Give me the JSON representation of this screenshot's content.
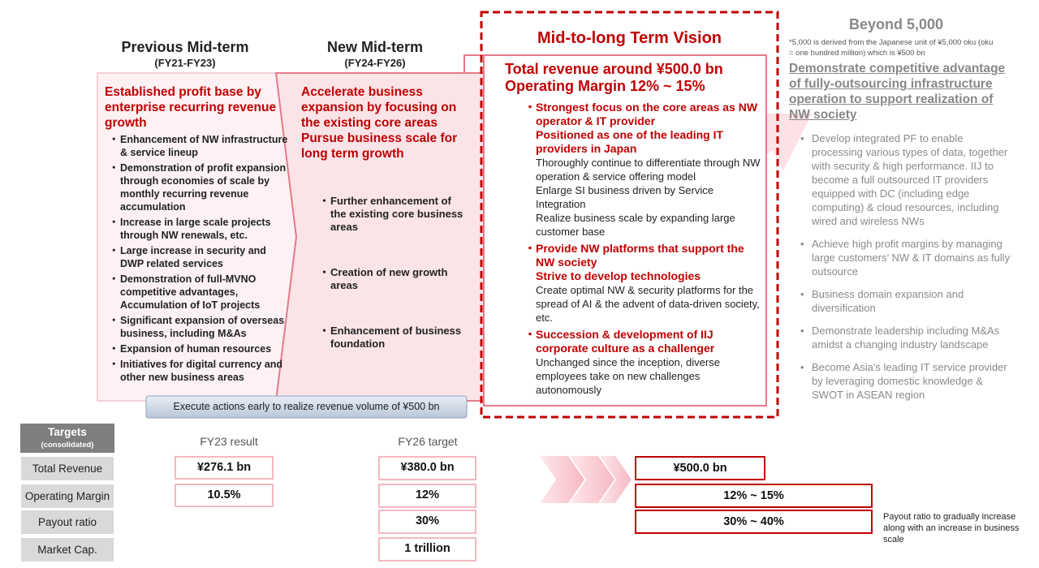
{
  "previous": {
    "title": "Previous Mid-term",
    "period": "(FY21-FY23)",
    "heading": "Established profit base by enterprise recurring revenue growth",
    "items": [
      "Enhancement of NW infrastructure & service lineup",
      "Demonstration of profit expansion through economies of scale by monthly recurring revenue accumulation",
      "Increase in large scale projects through NW renewals, etc.",
      "Large increase in security and DWP related services",
      "Demonstration of full-MVNO competitive advantages, Accumulation of IoT projects",
      "Significant expansion of overseas business, including M&As",
      "Expansion of human resources",
      "Initiatives for digital currency and other new business areas"
    ]
  },
  "new": {
    "title": "New Mid-term",
    "period": "(FY24-FY26)",
    "heading": [
      "Accelerate business expansion by focusing on the existing core areas",
      "Pursue business scale for long term growth"
    ],
    "items": [
      "Further enhancement of the existing core business areas",
      "Creation of new growth areas",
      "Enhancement of business foundation"
    ]
  },
  "vision": {
    "title": "Mid-to-long Term Vision",
    "headline": [
      "Total revenue around ¥500.0 bn",
      "Operating Margin 12% ~ 15%"
    ],
    "sections": [
      {
        "heading": [
          "Strongest focus on the core areas as NW operator & IT provider",
          "Positioned as one of the leading IT providers in Japan"
        ],
        "body": [
          "Thoroughly continue to differentiate through NW operation & service offering model",
          "Enlarge SI business driven by Service Integration",
          "Realize business scale by expanding large customer base"
        ]
      },
      {
        "heading": [
          "Provide NW platforms that support the NW society",
          "Strive to develop technologies"
        ],
        "body": [
          "Create optimal NW & security platforms for the spread of AI & the advent of data-driven society, etc."
        ]
      },
      {
        "heading": [
          "Succession & development of IIJ corporate culture as a challenger"
        ],
        "body": [
          "Unchanged since the inception, diverse employees take on new challenges autonomously"
        ]
      }
    ]
  },
  "beyond": {
    "title": "Beyond 5,000",
    "note": "*5,000 is derived from the Japanese unit of  ¥5,000 oku (oku = one hundred million) which is ¥500 bn",
    "heading": "Demonstrate competitive advantage of fully-outsourcing infrastructure operation to support realization of NW society",
    "items": [
      "Develop integrated PF to enable processing various types of data, together with security & high performance. IIJ to become a full outsourced IT providers equipped with DC (including edge computing) & cloud resources, including wired and wireless NWs",
      "Achieve high profit margins by managing large customers’ NW & IT domains as fully outsource",
      "Business domain expansion and diversification",
      "Demonstrate leadership including M&As amidst a changing industry landscape",
      "Become Asia's leading IT service provider by leveraging domestic knowledge & SWOT in ASEAN region"
    ]
  },
  "banner": "Execute actions early to realize revenue volume of ¥500 bn",
  "targets": {
    "title": "Targets",
    "subtitle": "(consolidated)",
    "columns": [
      "FY23 result",
      "FY26 target"
    ],
    "rows": [
      {
        "label": "Total Revenue",
        "fy23": "¥276.1 bn",
        "fy26": "¥380.0 bn",
        "vision": "¥500.0 bn"
      },
      {
        "label": "Operating Margin",
        "fy23": "10.5%",
        "fy26": "12%",
        "vision": "12% ~ 15%"
      },
      {
        "label": "Payout ratio",
        "fy26": "30%",
        "vision": "30% ~ 40%"
      },
      {
        "label": "Market Cap.",
        "fy26": "1 trillion"
      }
    ],
    "note": "Payout ratio to gradually increase along with an increase in business scale"
  }
}
